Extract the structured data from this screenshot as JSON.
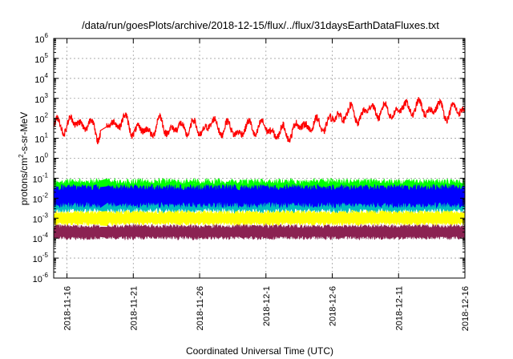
{
  "chart_data": {
    "type": "line",
    "title": "/data/run/goesPlots/archive/2018-12-15/flux/../flux/31daysEarthDataFluxes.txt",
    "xlabel": "Coordinated Universal Time (UTC)",
    "ylabel": "protons/cm",
    "ylabel_sup": "2",
    "ylabel_rest": "-s-sr-MeV",
    "y_scale": "log",
    "ylim_exp": [
      -6,
      6
    ],
    "y_ticks": [
      {
        "base": "10",
        "exp": "-6"
      },
      {
        "base": "10",
        "exp": "-5"
      },
      {
        "base": "10",
        "exp": "-4"
      },
      {
        "base": "10",
        "exp": "-3"
      },
      {
        "base": "10",
        "exp": "-2"
      },
      {
        "base": "10",
        "exp": "-1"
      },
      {
        "base": "10",
        "exp": "0"
      },
      {
        "base": "10",
        "exp": "1"
      },
      {
        "base": "10",
        "exp": "2"
      },
      {
        "base": "10",
        "exp": "3"
      },
      {
        "base": "10",
        "exp": "4"
      },
      {
        "base": "10",
        "exp": "5"
      },
      {
        "base": "10",
        "exp": "6"
      }
    ],
    "xlim": [
      "2018-11-15",
      "2018-12-16"
    ],
    "x_ticks": [
      "2018-11-16",
      "2018-11-21",
      "2018-11-26",
      "2018-12-1",
      "2018-12-6",
      "2018-12-11",
      "2018-12-16"
    ],
    "x_tick_dates": [
      "2018-11-16",
      "2018-11-21",
      "2018-11-26",
      "2018-12-01",
      "2018-12-06",
      "2018-12-11",
      "2018-12-16"
    ],
    "data_gap": [
      "2018-11-18T12:00",
      "2018-11-19T00:00"
    ],
    "grid": true,
    "series": [
      {
        "color": "#ff0000",
        "style": "line",
        "log10_values": [
          [
            0,
            1.6
          ],
          [
            1,
            1.7
          ],
          [
            2,
            1.8
          ],
          [
            3,
            1.5
          ],
          [
            3.3,
            1.3
          ],
          [
            4.3,
            1.7
          ],
          [
            5,
            1.9
          ],
          [
            6,
            1.5
          ],
          [
            7,
            1.3
          ],
          [
            8,
            1.7
          ],
          [
            9,
            1.4
          ],
          [
            10,
            1.6
          ],
          [
            11,
            1.4
          ],
          [
            12,
            1.7
          ],
          [
            13,
            1.5
          ],
          [
            14,
            1.3
          ],
          [
            15,
            1.6
          ],
          [
            16,
            1.5
          ],
          [
            17,
            1.2
          ],
          [
            18,
            1.4
          ],
          [
            19,
            1.7
          ],
          [
            20,
            1.6
          ],
          [
            21,
            1.9
          ],
          [
            22,
            2.3
          ],
          [
            23,
            2.1
          ],
          [
            24,
            2.5
          ],
          [
            25,
            2.3
          ],
          [
            26,
            2.4
          ],
          [
            27,
            2.6
          ],
          [
            28,
            2.4
          ],
          [
            29,
            2.5
          ],
          [
            30,
            2.3
          ],
          [
            31,
            2.5
          ]
        ]
      },
      {
        "color": "#00ff00",
        "style": "band",
        "log10_range": [
          -2.2,
          -1.0
        ]
      },
      {
        "color": "#00bfbf",
        "style": "band",
        "log10_range": [
          -2.8,
          -1.6
        ]
      },
      {
        "color": "#0000ff",
        "style": "band",
        "log10_range": [
          -2.5,
          -1.3
        ]
      },
      {
        "color": "#ffff00",
        "style": "band",
        "log10_range": [
          -3.4,
          -2.6
        ]
      },
      {
        "color": "#8b2252",
        "style": "band",
        "log10_range": [
          -4.1,
          -3.3
        ]
      }
    ]
  }
}
